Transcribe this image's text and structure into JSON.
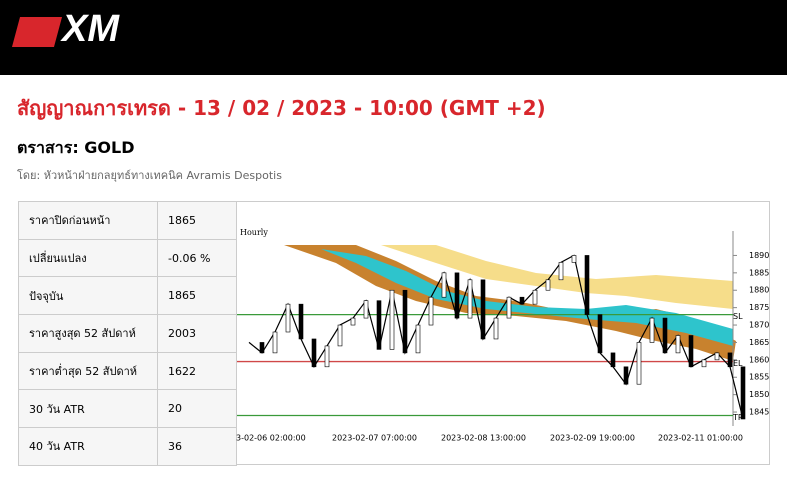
{
  "header": {
    "logo": "XM"
  },
  "title": "สัญญาณการเทรด - 13 / 02 / 2023 - 10:00 (GMT +2)",
  "instrument": "ตราสาร: GOLD",
  "author": "โดย: หัวหน้าฝ่ายกลยุทธ์ทางเทคนิค Avramis Despotis",
  "table": {
    "rows": [
      [
        "ราคาปิดก่อนหน้า",
        "1865"
      ],
      [
        "เปลี่ยนแปลง",
        "-0.06 %"
      ],
      [
        "ปัจจุบัน",
        "1865"
      ],
      [
        "ราคาสูงสุด 52 สัปดาห์",
        "2003"
      ],
      [
        "ราคาต่ำสุด 52 สัปดาห์",
        "1622"
      ],
      [
        "30 วัน ATR",
        "20"
      ],
      [
        "40 วัน ATR",
        "36"
      ]
    ]
  },
  "chart_data": {
    "type": "line",
    "timeframe": "Hourly",
    "x_labels": [
      "3-02-06 02:00:00",
      "2023-02-07 07:00:00",
      "2023-02-08 13:00:00",
      "2023-02-09 19:00:00",
      "2023-02-11 01:00:00"
    ],
    "values": [
      1865,
      1862,
      1868,
      1876,
      1866,
      1858,
      1864,
      1870,
      1872,
      1877,
      1863,
      1880,
      1862,
      1870,
      1878,
      1885,
      1872,
      1883,
      1866,
      1872,
      1878,
      1876,
      1880,
      1883,
      1888,
      1890,
      1873,
      1862,
      1858,
      1853,
      1865,
      1872,
      1862,
      1867,
      1858,
      1860,
      1862,
      1858,
      1843
    ],
    "color": "#000000",
    "ylim": [
      1843,
      1893
    ],
    "yticks": [
      1845,
      1850,
      1855,
      1860,
      1865,
      1870,
      1875,
      1880,
      1885,
      1890
    ],
    "levels": [
      {
        "name": "SL",
        "value": 1873,
        "color": "#3a9a3a"
      },
      {
        "name": "EL",
        "value": 1859.5,
        "color": "#d04848"
      },
      {
        "name": "TP",
        "value": 1844,
        "color": "#3a9a3a"
      }
    ]
  }
}
